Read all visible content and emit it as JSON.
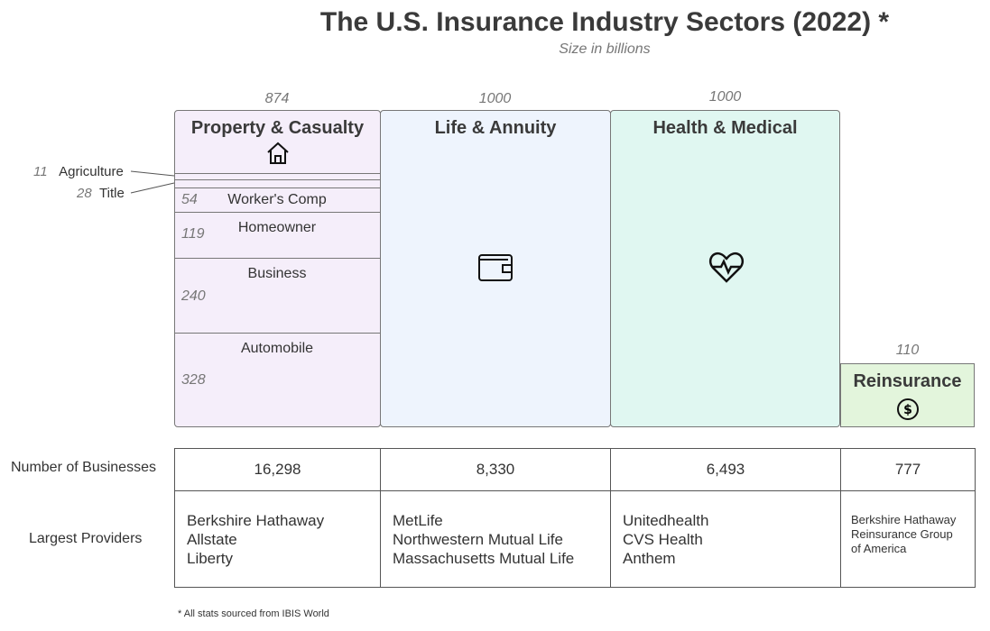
{
  "title": "The U.S. Insurance Industry Sectors (2022) *",
  "subtitle": "Size in billions",
  "sectors": [
    {
      "name": "Property & Casualty",
      "size": "874",
      "icon": "house-icon",
      "color": "#f5eefa",
      "businesses": "16,298",
      "providers": [
        "Berkshire Hathaway",
        "Allstate",
        "Liberty"
      ]
    },
    {
      "name": "Life & Annuity",
      "size": "1000",
      "icon": "wallet-icon",
      "color": "#eef4fd",
      "businesses": "8,330",
      "providers": [
        "MetLife",
        "Northwestern Mutual Life",
        "Massachusetts Mutual Life"
      ]
    },
    {
      "name": "Health & Medical",
      "size": "1000",
      "icon": "heart-pulse-icon",
      "color": "#e0f7f1",
      "businesses": "6,493",
      "providers": [
        "Unitedhealth",
        "CVS Health",
        "Anthem"
      ]
    },
    {
      "name": "Reinsurance",
      "size": "110",
      "icon": "dollar-coin-icon",
      "color": "#e3f5dc",
      "businesses": "777",
      "providers": [
        "Berkshire Hathaway",
        "Reinsurance Group",
        "of America"
      ]
    }
  ],
  "pc_segments": [
    {
      "name": "Agriculture",
      "size": "11"
    },
    {
      "name": "Title",
      "size": "28"
    },
    {
      "name": "Worker's Comp",
      "size": "54"
    },
    {
      "name": "Homeowner",
      "size": "119"
    },
    {
      "name": "Business",
      "size": "240"
    },
    {
      "name": "Automobile",
      "size": "328"
    }
  ],
  "row_labels": {
    "businesses": "Number of Businesses",
    "providers": "Largest Providers"
  },
  "footnote": "* All stats sourced from IBIS World"
}
